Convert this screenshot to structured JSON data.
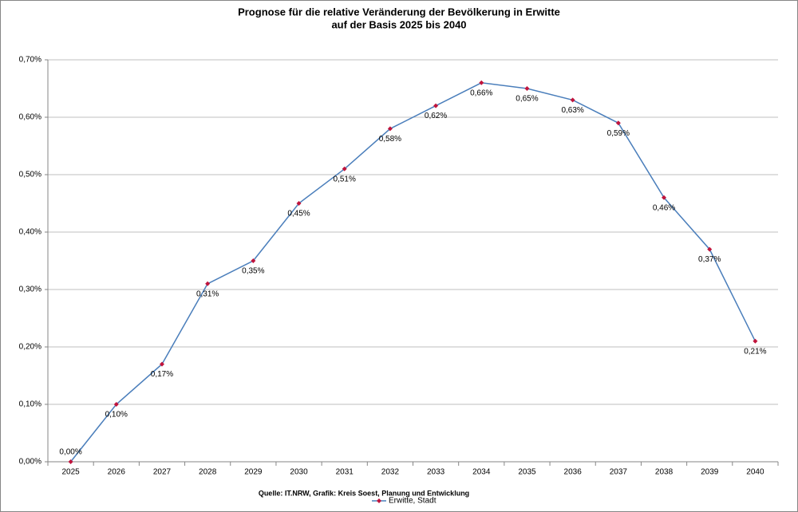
{
  "chart_data": {
    "type": "line",
    "title": "Prognose für die relative Veränderung der Bevölkerung in Erwitte",
    "subtitle": "auf der Basis 2025 bis 2040",
    "source": "Quelle: IT.NRW, Grafik: Kreis Soest, Planung und Entwicklung",
    "categories": [
      "2025",
      "2026",
      "2027",
      "2028",
      "2029",
      "2030",
      "2031",
      "2032",
      "2033",
      "2034",
      "2035",
      "2036",
      "2037",
      "2038",
      "2039",
      "2040"
    ],
    "series": [
      {
        "name": "Erwitte, Stadt",
        "color": "#4a7ebb",
        "marker_color": "#c0143c",
        "values": [
          0.0,
          0.1,
          0.17,
          0.31,
          0.35,
          0.45,
          0.51,
          0.58,
          0.62,
          0.66,
          0.65,
          0.63,
          0.59,
          0.46,
          0.37,
          0.21
        ],
        "value_labels": [
          "0,00%",
          "0,10%",
          "0,17%",
          "0,31%",
          "0,35%",
          "0,45%",
          "0,51%",
          "0,58%",
          "0,62%",
          "0,66%",
          "0,65%",
          "0,63%",
          "0,59%",
          "0,46%",
          "0,37%",
          "0,21%"
        ]
      }
    ],
    "ylim": [
      0,
      0.7
    ],
    "yticks": [
      {
        "value": 0,
        "label": "0,00%"
      },
      {
        "value": 0.1,
        "label": "0,10%"
      },
      {
        "value": 0.2,
        "label": "0,20%"
      },
      {
        "value": 0.3,
        "label": "0,30%"
      },
      {
        "value": 0.4,
        "label": "0,40%"
      },
      {
        "value": 0.5,
        "label": "0,50%"
      },
      {
        "value": 0.6,
        "label": "0,60%"
      },
      {
        "value": 0.7,
        "label": "0,70%"
      }
    ],
    "grid": true,
    "legend": "bottom"
  }
}
